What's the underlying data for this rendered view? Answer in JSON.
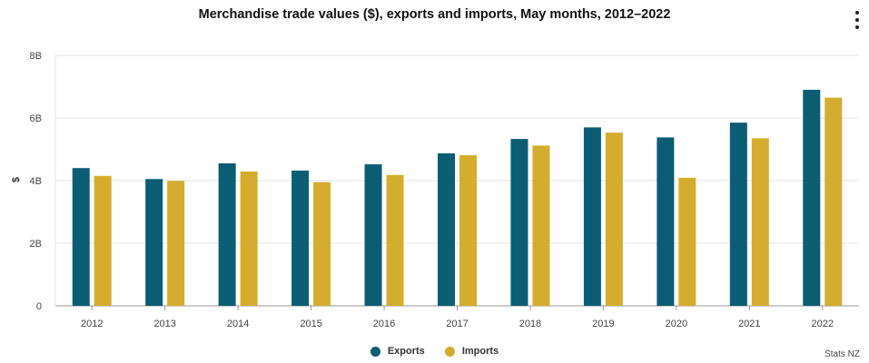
{
  "chart_data": {
    "type": "bar",
    "title": "Merchandise trade values ($), exports and imports, May months, 2012–2022",
    "xlabel": "",
    "ylabel": "$",
    "ylim": [
      0,
      8000000000
    ],
    "yticks": [
      {
        "value": 0,
        "label": "0"
      },
      {
        "value": 2000000000,
        "label": "2B"
      },
      {
        "value": 4000000000,
        "label": "4B"
      },
      {
        "value": 6000000000,
        "label": "6B"
      },
      {
        "value": 8000000000,
        "label": "8B"
      }
    ],
    "categories": [
      "2012",
      "2013",
      "2014",
      "2015",
      "2016",
      "2017",
      "2018",
      "2019",
      "2020",
      "2021",
      "2022"
    ],
    "series": [
      {
        "name": "Exports",
        "color": "#0b5d73",
        "values": [
          4400000000,
          4050000000,
          4550000000,
          4320000000,
          4520000000,
          4870000000,
          5330000000,
          5700000000,
          5380000000,
          5850000000,
          6900000000
        ]
      },
      {
        "name": "Imports",
        "color": "#d4ad2f",
        "values": [
          4150000000,
          3990000000,
          4290000000,
          3950000000,
          4180000000,
          4810000000,
          5120000000,
          5530000000,
          4090000000,
          5350000000,
          6650000000
        ]
      }
    ],
    "legend": "bottom-center",
    "grid": true
  },
  "ui": {
    "credit": "Stats NZ"
  }
}
